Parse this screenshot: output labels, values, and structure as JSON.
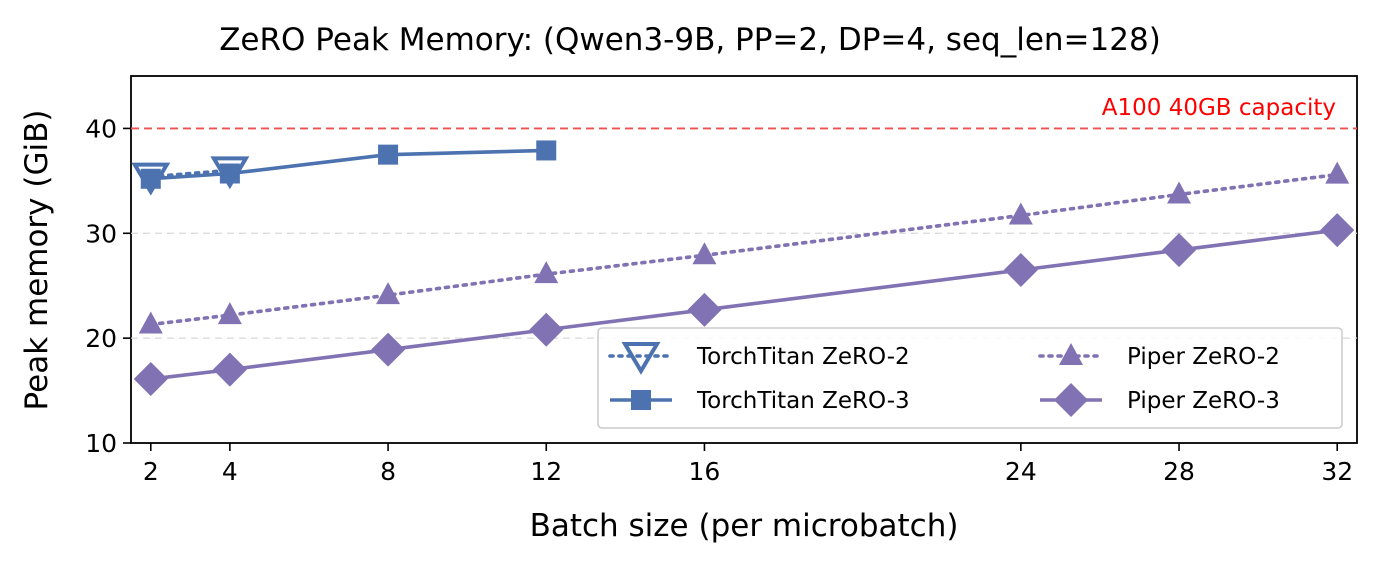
{
  "chart_data": {
    "type": "line",
    "title": "ZeRO Peak Memory: (Qwen3-9B, PP=2, DP=4, seq_len=128)",
    "xlabel": "Batch size (per microbatch)",
    "ylabel": "Peak memory (GiB)",
    "xlim": [
      1.5,
      32.5
    ],
    "ylim": [
      10,
      45
    ],
    "x_ticks": [
      2,
      4,
      8,
      12,
      16,
      24,
      28,
      32
    ],
    "y_ticks": [
      10,
      20,
      30,
      40
    ],
    "grid": "horizontal dashed",
    "legend_position": "lower-right",
    "reference_line": {
      "y": 40,
      "label": "A100 40GB capacity",
      "color": "#f05050"
    },
    "series": [
      {
        "name": "TorchTitan ZeRO-2",
        "color": "#4c72b0",
        "line_style": "dotted",
        "marker": "triangle-down-open",
        "x": [
          2,
          4
        ],
        "y": [
          35.4,
          36.0
        ]
      },
      {
        "name": "TorchTitan ZeRO-3",
        "color": "#4c72b0",
        "line_style": "solid",
        "marker": "square",
        "x": [
          2,
          4,
          8,
          12
        ],
        "y": [
          35.2,
          35.7,
          37.5,
          37.9
        ]
      },
      {
        "name": "Piper ZeRO-2",
        "color": "#8172b3",
        "line_style": "dotted",
        "marker": "triangle-up",
        "x": [
          2,
          4,
          8,
          12,
          16,
          24,
          28,
          32
        ],
        "y": [
          21.3,
          22.2,
          24.1,
          26.1,
          27.9,
          31.7,
          33.7,
          35.6
        ]
      },
      {
        "name": "Piper ZeRO-3",
        "color": "#8172b3",
        "line_style": "solid",
        "marker": "diamond",
        "x": [
          2,
          4,
          8,
          12,
          16,
          24,
          28,
          32
        ],
        "y": [
          16.1,
          17.0,
          18.9,
          20.8,
          22.7,
          26.5,
          28.4,
          30.3
        ]
      }
    ]
  }
}
